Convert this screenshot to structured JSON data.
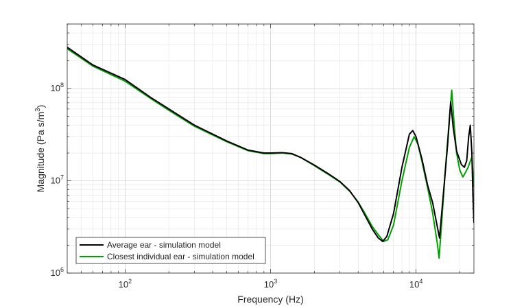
{
  "chart_data": {
    "type": "line",
    "xlabel": "Frequency (Hz)",
    "ylabel": "Magnitude (Pa s/m",
    "ylabel_sup": "3",
    "ylabel_end": ")",
    "xscale": "log",
    "yscale": "log",
    "xlim": [
      40,
      25000
    ],
    "ylim": [
      1000000,
      500000000
    ],
    "grid": true,
    "minor_grid": true,
    "legend_position": "bottom-left",
    "x_ticks": [
      {
        "value": 100,
        "base": "10",
        "exp": "2"
      },
      {
        "value": 1000,
        "base": "10",
        "exp": "3"
      },
      {
        "value": 10000,
        "base": "10",
        "exp": "4"
      }
    ],
    "y_ticks": [
      {
        "value": 1000000,
        "base": "10",
        "exp": "6"
      },
      {
        "value": 10000000,
        "base": "10",
        "exp": "7"
      },
      {
        "value": 100000000,
        "base": "10",
        "exp": "8"
      }
    ],
    "series": [
      {
        "name": "Average ear - simulation model",
        "color": "#000000",
        "x": [
          40,
          60,
          100,
          150,
          200,
          300,
          500,
          700,
          900,
          1000,
          1200,
          1400,
          1600,
          2000,
          2500,
          3000,
          3500,
          4000,
          4500,
          5000,
          5500,
          5900,
          6300,
          7000,
          8000,
          9000,
          9500,
          10000,
          11000,
          12000,
          13000,
          14500,
          15500,
          16500,
          17300,
          18000,
          19000,
          20500,
          21500,
          22300,
          23000,
          23600,
          24200,
          24600,
          25000
        ],
        "y": [
          280000000,
          180000000,
          125000000,
          80000000,
          60000000,
          40000000,
          27000000,
          21500000,
          20000000,
          20000000,
          20200000,
          19700000,
          18000000,
          14800000,
          11900000,
          9800000,
          7800000,
          5800000,
          4100000,
          3000000,
          2400000,
          2200000,
          2500000,
          4400000,
          14000000,
          32000000,
          35000000,
          30000000,
          17000000,
          9000000,
          5800000,
          2400000,
          8000000,
          25000000,
          72000000,
          38000000,
          21000000,
          15000000,
          14000000,
          16500000,
          30000000,
          40000000,
          20000000,
          7000000,
          3500000
        ]
      },
      {
        "name": "Closest individual ear - simulation model",
        "color": "#00a000",
        "x": [
          40,
          60,
          100,
          150,
          200,
          300,
          500,
          700,
          900,
          1000,
          1200,
          1400,
          1600,
          2000,
          2500,
          3000,
          3500,
          4000,
          4500,
          5000,
          5500,
          6000,
          6400,
          7000,
          8000,
          9000,
          9700,
          10300,
          11000,
          12000,
          13000,
          14000,
          14400,
          15000,
          16000,
          17000,
          17600,
          18300,
          19000,
          20000,
          21000,
          22000,
          22800,
          23500,
          24200,
          25000
        ],
        "y": [
          270000000,
          175000000,
          120000000,
          78000000,
          58000000,
          39000000,
          26500000,
          21200000,
          19700000,
          19700000,
          20000000,
          19500000,
          18000000,
          14600000,
          11700000,
          9700000,
          7700000,
          5900000,
          4300000,
          3200000,
          2600000,
          2200000,
          2300000,
          3300000,
          10000000,
          23000000,
          30000000,
          25000000,
          16000000,
          8500000,
          4500000,
          2100000,
          1450000,
          3500000,
          15000000,
          50000000,
          96000000,
          40000000,
          20000000,
          13000000,
          11000000,
          12500000,
          14000000,
          16000000,
          18000000,
          8500000
        ]
      }
    ]
  }
}
